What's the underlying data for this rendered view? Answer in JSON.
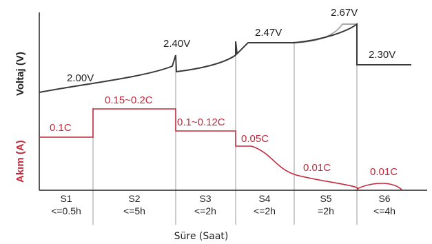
{
  "chart_data": {
    "type": "line",
    "title": "",
    "xlabel": "Süre (Saat)",
    "ylabel_voltage": "Voltaj (V)",
    "ylabel_current": "Akım (A)",
    "stages": [
      {
        "name": "S1",
        "duration": "<=0.5h"
      },
      {
        "name": "S2",
        "duration": "<=5h"
      },
      {
        "name": "S3",
        "duration": "<=2h"
      },
      {
        "name": "S4",
        "duration": "<=2h"
      },
      {
        "name": "S5",
        "duration": "=2h"
      },
      {
        "name": "S6",
        "duration": "<=4h"
      }
    ],
    "voltage_labels": [
      "2.00V",
      "2.40V",
      "2.47V",
      "2.67V",
      "2.30V"
    ],
    "current_labels": [
      "0.1C",
      "0.15~0.2C",
      "0.1~0.12C",
      "0.05C",
      "0.01C",
      "0.01C"
    ],
    "series": [
      {
        "name": "Voltaj (V)",
        "color": "#3a3a3a"
      },
      {
        "name": "Akım (A)",
        "color": "#c0283a"
      }
    ],
    "colors": {
      "voltage": "#3a3a3a",
      "voltage_alt": "#a8a8a8",
      "current": "#c0283a",
      "grid": "#9a9a9a",
      "axis": "#222222"
    }
  }
}
